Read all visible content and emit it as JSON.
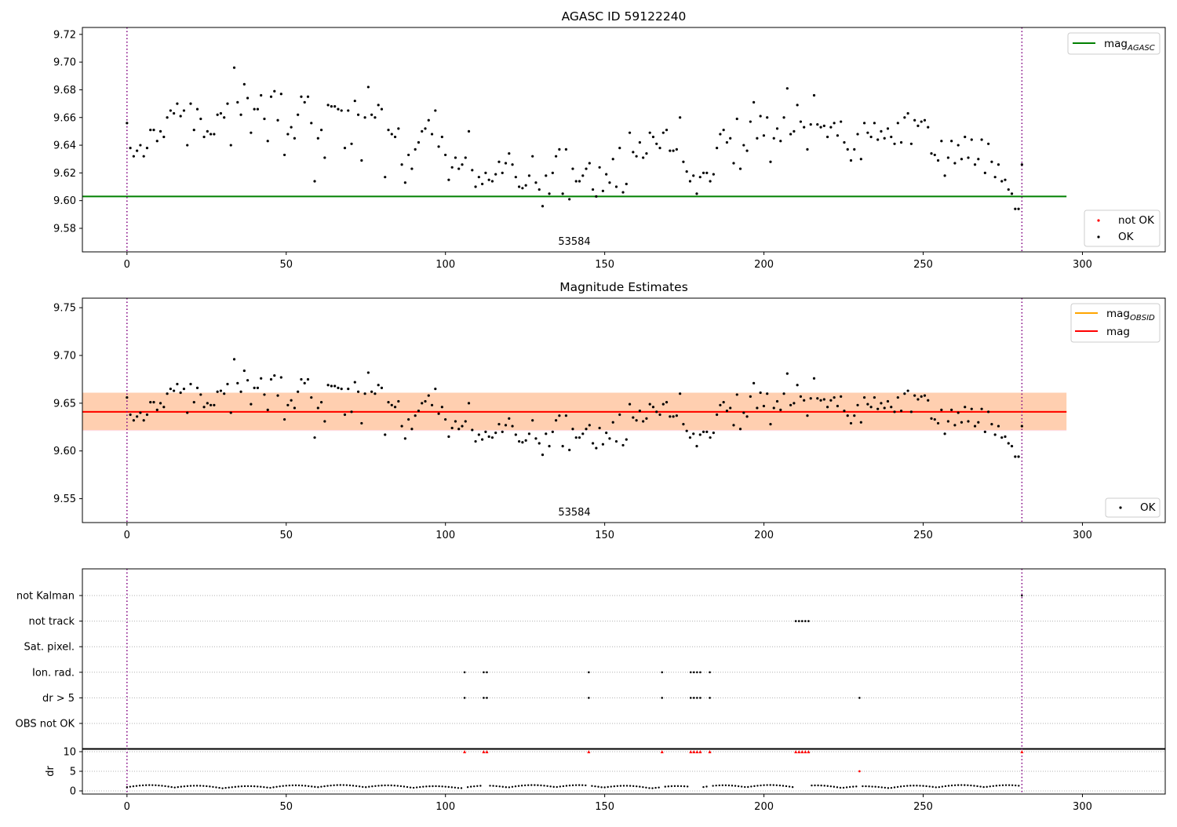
{
  "chart_data": [
    {
      "type": "scatter",
      "title": "AGASC ID 59122240",
      "xlim": [
        -14,
        326
      ],
      "ylim": [
        9.563,
        9.725
      ],
      "xticks": [
        0,
        50,
        100,
        150,
        200,
        250,
        300
      ],
      "yticks": [
        9.58,
        9.6,
        9.62,
        9.64,
        9.66,
        9.68,
        9.7,
        9.72
      ],
      "ytick_labels": [
        "9.58",
        "9.60",
        "9.62",
        "9.64",
        "9.66",
        "9.68",
        "9.70",
        "9.72"
      ],
      "annotation": "53584",
      "hlines": [
        {
          "name": "mag_AGASC",
          "y": 9.603,
          "x": [
            -14,
            295
          ],
          "color": "#008000"
        }
      ],
      "vlines": [
        {
          "x": 0,
          "color": "#800080"
        },
        {
          "x": 281,
          "color": "#800080"
        }
      ],
      "legend_top": {
        "position": "top-right",
        "entries": [
          {
            "label": "mag",
            "sub": "AGASC",
            "color": "#008000",
            "marker": "line"
          }
        ]
      },
      "legend_bottom": {
        "position": "bottom-right",
        "entries": [
          {
            "label": "not OK",
            "color": "#ff0000",
            "marker": "dot"
          },
          {
            "label": "OK",
            "color": "#000000",
            "marker": "dot"
          }
        ]
      },
      "series": [
        {
          "name": "OK",
          "color": "#000000"
        }
      ]
    },
    {
      "type": "scatter",
      "title": "Magnitude Estimates",
      "xlim": [
        -14,
        326
      ],
      "ylim": [
        9.525,
        9.76
      ],
      "xticks": [
        0,
        50,
        100,
        150,
        200,
        250,
        300
      ],
      "yticks": [
        9.55,
        9.6,
        9.65,
        9.7,
        9.75
      ],
      "ytick_labels": [
        "9.55",
        "9.60",
        "9.65",
        "9.70",
        "9.75"
      ],
      "annotation": "53584",
      "bands": [
        {
          "y": [
            9.621,
            9.661
          ],
          "x": [
            -14,
            295
          ],
          "color": "#ffc0cb",
          "opacity": 0.55
        },
        {
          "y": [
            9.622,
            9.661
          ],
          "x": [
            -14,
            295
          ],
          "color": "#ffa500",
          "opacity": 0.22
        }
      ],
      "hlines": [
        {
          "name": "mag_OBSID",
          "y": 9.641,
          "x": [
            -14,
            295
          ],
          "color": "#ffa500"
        },
        {
          "name": "mag",
          "y": 9.641,
          "x": [
            -14,
            295
          ],
          "color": "#ff0000"
        }
      ],
      "vlines": [
        {
          "x": 0,
          "color": "#800080"
        },
        {
          "x": 281,
          "color": "#800080"
        }
      ],
      "legend_top": {
        "position": "top-right",
        "entries": [
          {
            "label": "mag",
            "sub": "OBSID",
            "color": "#ffa500",
            "marker": "line"
          },
          {
            "label": "mag",
            "sub": "",
            "color": "#ff0000",
            "marker": "line"
          }
        ]
      },
      "legend_bottom": {
        "position": "bottom-right",
        "entries": [
          {
            "label": "OK",
            "color": "#000000",
            "marker": "dot"
          }
        ]
      },
      "series": [
        {
          "name": "OK",
          "color": "#000000"
        }
      ]
    },
    {
      "type": "scatter",
      "title": "",
      "xlim": [
        -14,
        326
      ],
      "xticks": [
        0,
        50,
        100,
        150,
        200,
        250,
        300
      ],
      "categories": [
        "not Kalman",
        "not track",
        "Sat. pixel.",
        "Ion. rad.",
        "dr > 5",
        "OBS not OK"
      ],
      "flags": {
        "not Kalman": [
          281
        ],
        "not track": [
          210,
          211,
          212,
          213,
          214
        ],
        "Sat. pixel.": [],
        "Ion. rad.": [
          106,
          112,
          113,
          145,
          168,
          177,
          178,
          179,
          180,
          183
        ],
        "dr > 5": [
          106,
          112,
          113,
          145,
          168,
          177,
          178,
          179,
          180,
          183,
          230
        ],
        "OBS not OK": []
      },
      "vlines": [
        {
          "x": 0,
          "color": "#800080"
        },
        {
          "x": 281,
          "color": "#800080"
        }
      ]
    },
    {
      "type": "scatter",
      "title": "",
      "ylabel": "dr",
      "xlim": [
        -14,
        326
      ],
      "ylim": [
        -0.8,
        10.8
      ],
      "xticks": [
        0,
        50,
        100,
        150,
        200,
        250,
        300
      ],
      "yticks": [
        0,
        5,
        10
      ],
      "ytick_labels": [
        "0",
        "5",
        "10"
      ],
      "clipped_markers": {
        "x": [
          106,
          112,
          113,
          145,
          168,
          177,
          178,
          179,
          180,
          183,
          210,
          211,
          212,
          213,
          214,
          281
        ],
        "y": 10,
        "color": "#ff0000"
      },
      "dr_outlier": {
        "x": 230,
        "y": 5,
        "color": "#ff0000"
      },
      "vlines": [
        {
          "x": 0,
          "color": "#800080"
        },
        {
          "x": 281,
          "color": "#800080"
        }
      ],
      "series": [
        {
          "name": "OK",
          "color": "#000000"
        }
      ]
    }
  ]
}
